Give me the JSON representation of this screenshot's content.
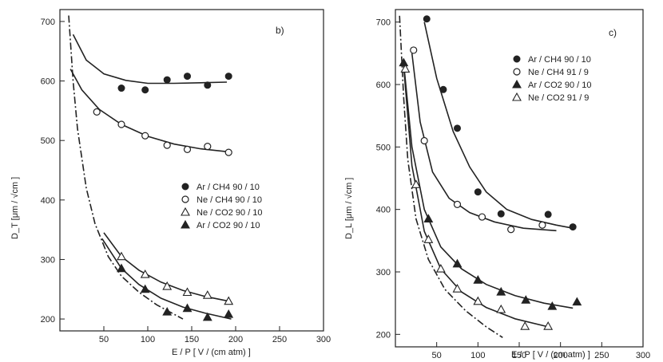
{
  "chart_data": [
    {
      "type": "scatter",
      "panel_label": "b)",
      "xlabel": "E / P   [ V / (cm atm) ]",
      "ylabel": "D_T  [μm / √cm ]",
      "xlim": [
        0,
        300
      ],
      "ylim": [
        180,
        720
      ],
      "xticks": [
        50,
        100,
        150,
        200,
        250,
        300
      ],
      "yticks": [
        200,
        300,
        400,
        500,
        600,
        700
      ],
      "legend_position": "center-right",
      "series": [
        {
          "name": "Ar / CH4  90 / 10",
          "marker": "filled-circle",
          "x": [
            70,
            97,
            122,
            145,
            168,
            192
          ],
          "y": [
            588,
            585,
            602,
            608,
            593,
            608
          ],
          "fit": {
            "x": [
              15,
              30,
              50,
              75,
              100,
              130,
              160,
              190
            ],
            "y": [
              678,
              635,
              612,
              601,
              596,
              596,
              597,
              598
            ]
          }
        },
        {
          "name": "Ne / CH4  90 / 10",
          "marker": "open-circle",
          "x": [
            42,
            70,
            97,
            122,
            145,
            168,
            192
          ],
          "y": [
            548,
            527,
            508,
            492,
            485,
            490,
            480
          ],
          "fit": {
            "x": [
              12,
              25,
              45,
              70,
              100,
              130,
              160,
              192
            ],
            "y": [
              620,
              585,
              552,
              527,
              507,
              494,
              486,
              481
            ]
          }
        },
        {
          "name": "Ne / CO2  90 / 10",
          "marker": "open-triangle",
          "x": [
            70,
            97,
            122,
            145,
            168,
            192
          ],
          "y": [
            305,
            275,
            255,
            245,
            240,
            230
          ],
          "fit": {
            "x": [
              50,
              70,
              90,
              115,
              140,
              165,
              192
            ],
            "y": [
              345,
              305,
              282,
              262,
              248,
              238,
              230
            ]
          }
        },
        {
          "name": "Ar / CO2  90 / 10",
          "marker": "filled-triangle",
          "x": [
            70,
            97,
            122,
            145,
            168,
            192
          ],
          "y": [
            285,
            250,
            212,
            218,
            203,
            208
          ],
          "fit": {
            "x": [
              48,
              70,
              90,
              115,
              140,
              165,
              195
            ],
            "y": [
              335,
              285,
              258,
              235,
              220,
              210,
              200
            ]
          }
        }
      ],
      "diffusion_limit_curve": {
        "style": "dash-dot",
        "x": [
          10,
          15,
          20,
          30,
          40,
          55,
          70,
          90,
          110,
          140
        ],
        "y": [
          710,
          600,
          520,
          420,
          360,
          305,
          272,
          245,
          224,
          200
        ]
      }
    },
    {
      "type": "scatter",
      "panel_label": "c)",
      "xlabel": "E / P   [ V / (cm atm) ]",
      "ylabel": "D_L  [μm / √cm ]",
      "xlim": [
        0,
        300
      ],
      "ylim": [
        180,
        720
      ],
      "xticks": [
        50,
        100,
        150,
        200,
        250,
        300
      ],
      "yticks": [
        200,
        300,
        400,
        500,
        600,
        700
      ],
      "legend_position": "top-right",
      "series": [
        {
          "name": "Ar / CH4  90 / 10",
          "marker": "filled-circle",
          "x": [
            38,
            58,
            75,
            100,
            128,
            185,
            215
          ],
          "y": [
            705,
            592,
            530,
            428,
            393,
            392,
            372
          ],
          "fit": {
            "x": [
              35,
              50,
              70,
              90,
              110,
              135,
              165,
              195,
              215
            ],
            "y": [
              700,
              610,
              525,
              468,
              428,
              400,
              384,
              375,
              370
            ]
          }
        },
        {
          "name": "Ne / CH4  91 / 9",
          "marker": "open-circle",
          "x": [
            22,
            35,
            75,
            105,
            140,
            178
          ],
          "y": [
            655,
            510,
            408,
            388,
            368,
            375
          ],
          "fit": {
            "x": [
              20,
              30,
              45,
              65,
              90,
              120,
              155,
              195
            ],
            "y": [
              650,
              540,
              460,
              418,
              395,
              380,
              370,
              366
            ]
          }
        },
        {
          "name": "Ar / CO2  90 / 10",
          "marker": "filled-triangle",
          "x": [
            10,
            40,
            75,
            100,
            128,
            158,
            190,
            220
          ],
          "y": [
            635,
            385,
            313,
            287,
            268,
            255,
            245,
            252
          ],
          "fit": {
            "x": [
              10,
              20,
              35,
              55,
              80,
              110,
              145,
              180,
              215
            ],
            "y": [
              635,
              500,
              400,
              340,
              305,
              280,
              262,
              250,
              242
            ]
          }
        },
        {
          "name": "Ne / CO2  91 / 9",
          "marker": "open-triangle",
          "x": [
            12,
            25,
            40,
            55,
            75,
            100,
            128,
            157,
            185
          ],
          "y": [
            625,
            440,
            352,
            305,
            273,
            253,
            240,
            213,
            213
          ],
          "fit": {
            "x": [
              10,
              20,
              35,
              55,
              80,
              110,
              145,
              185
            ],
            "y": [
              630,
              470,
              365,
              305,
              268,
              243,
              225,
              212
            ]
          }
        }
      ],
      "diffusion_limit_curve": {
        "style": "dash-dot",
        "x": [
          5,
          10,
          15,
          25,
          40,
          60,
          85,
          110,
          130
        ],
        "y": [
          710,
          580,
          480,
          385,
          320,
          272,
          238,
          212,
          195
        ]
      }
    }
  ]
}
